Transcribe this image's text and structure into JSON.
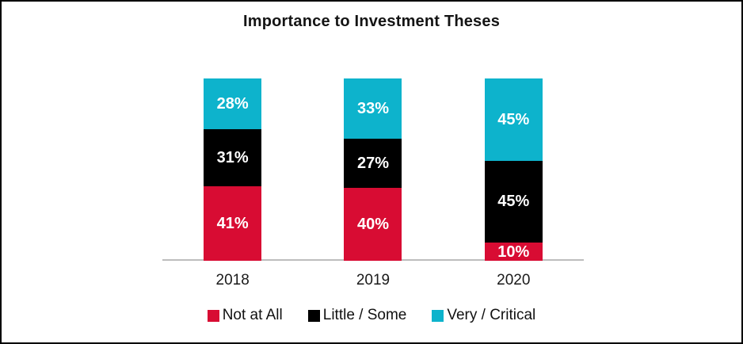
{
  "page": {
    "background": "#ffffff",
    "border_color": "#000000"
  },
  "chart_data": {
    "type": "bar",
    "stacked": true,
    "title": "Importance to Investment Theses",
    "categories": [
      "2018",
      "2019",
      "2020"
    ],
    "series": [
      {
        "name": "Not at All",
        "color": "#d80c33",
        "values": [
          41,
          40,
          10
        ]
      },
      {
        "name": "Little / Some",
        "color": "#000000",
        "values": [
          31,
          27,
          45
        ]
      },
      {
        "name": "Very / Critical",
        "color": "#0db3cc",
        "values": [
          28,
          33,
          45
        ]
      }
    ],
    "value_suffix": "%",
    "ylim": [
      0,
      100
    ],
    "grid": false,
    "legend_position": "bottom",
    "axis_line_color": "#bdbdbd",
    "bar_label_color": "#ffffff"
  }
}
